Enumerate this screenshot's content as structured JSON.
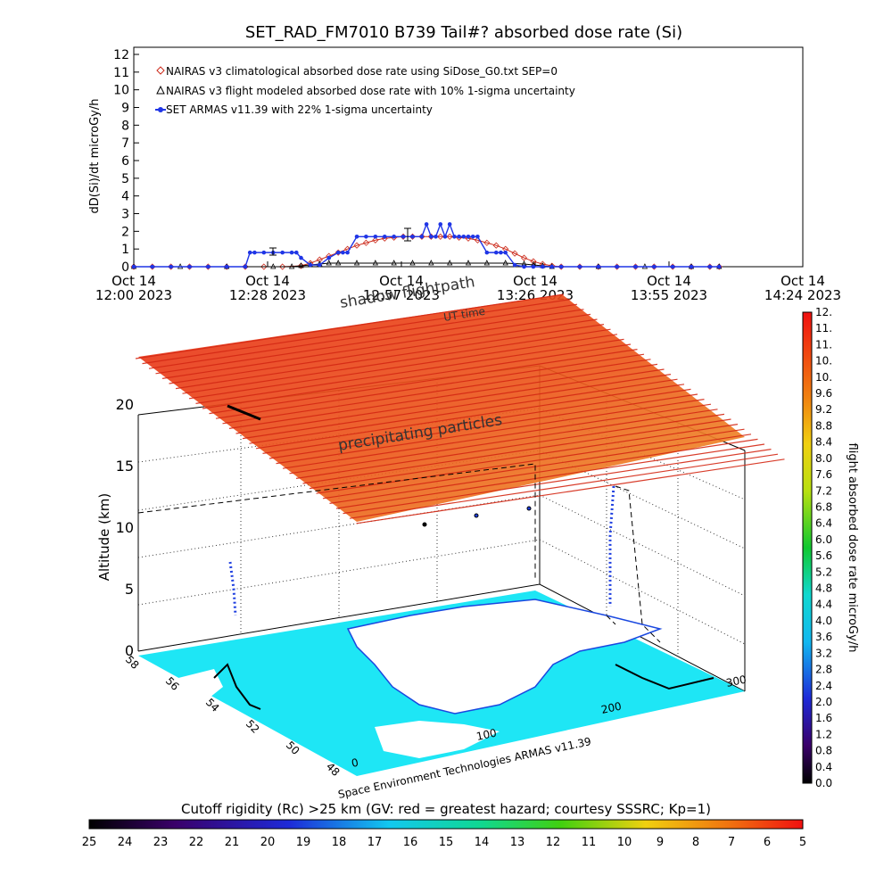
{
  "chart_data": [
    {
      "type": "line",
      "title": "SET_RAD_FM7010  B739 Tail#? absorbed dose rate (Si)",
      "ylabel": "dD(Si)/dt microGy/h",
      "xlabel": "",
      "ylim": [
        0,
        12
      ],
      "yticks": [
        "0",
        "1",
        "2",
        "3",
        "4",
        "5",
        "6",
        "7",
        "8",
        "9",
        "10",
        "11",
        "12"
      ],
      "xticks": [
        {
          "line1": "Oct 14",
          "line2": "12:00 2023"
        },
        {
          "line1": "Oct 14",
          "line2": "12:28 2023"
        },
        {
          "line1": "Oct 14",
          "line2": "12:57 2023"
        },
        {
          "line1": "Oct 14",
          "line2": "13:26 2023"
        },
        {
          "line1": "Oct 14",
          "line2": "13:55 2023"
        },
        {
          "line1": "Oct 14",
          "line2": "14:24 2023"
        }
      ],
      "xlim_minutes": [
        0,
        144
      ],
      "legend_placement": "top-left",
      "series": [
        {
          "name": "NAIRAS v3 climatological absorbed dose rate using SiDose_G0.txt SEP=0",
          "marker": "diamond",
          "color": "#cc2a1a",
          "x_minutes": [
            0,
            4,
            8,
            12,
            16,
            20,
            24,
            28,
            32,
            36,
            38,
            40,
            42,
            44,
            46,
            48,
            50,
            52,
            54,
            56,
            58,
            60,
            62,
            64,
            66,
            68,
            70,
            72,
            74,
            76,
            78,
            80,
            82,
            84,
            86,
            88,
            90,
            92,
            96,
            100,
            104,
            108,
            112,
            116,
            120,
            124,
            126
          ],
          "values": [
            0,
            0,
            0,
            0,
            0,
            0,
            0,
            0,
            0,
            0.05,
            0.2,
            0.4,
            0.6,
            0.8,
            1.0,
            1.2,
            1.35,
            1.5,
            1.6,
            1.65,
            1.7,
            1.7,
            1.7,
            1.7,
            1.7,
            1.7,
            1.65,
            1.6,
            1.5,
            1.35,
            1.2,
            1.0,
            0.75,
            0.5,
            0.3,
            0.15,
            0.05,
            0,
            0,
            0,
            0,
            0,
            0,
            0,
            0,
            0,
            0
          ]
        },
        {
          "name": "NAIRAS v3 flight modeled absorbed dose rate with 10% 1-sigma uncertainty",
          "marker": "triangle",
          "color": "#000000",
          "x_minutes": [
            0,
            10,
            20,
            30,
            34,
            36,
            38,
            40,
            42,
            44,
            48,
            52,
            56,
            60,
            64,
            68,
            72,
            76,
            80,
            84,
            86,
            88,
            90,
            100,
            110,
            120,
            126
          ],
          "values": [
            0,
            0,
            0,
            0,
            0,
            0.05,
            0.1,
            0.15,
            0.2,
            0.2,
            0.2,
            0.2,
            0.2,
            0.2,
            0.2,
            0.2,
            0.2,
            0.2,
            0.2,
            0.15,
            0.1,
            0.05,
            0,
            0,
            0,
            0,
            0
          ]
        },
        {
          "name": "SET ARMAS v11.39 with 22% 1-sigma uncertainty",
          "marker": "dot",
          "color": "#1f35e6",
          "x_minutes": [
            0,
            4,
            8,
            12,
            16,
            20,
            24,
            25,
            26,
            28,
            30,
            32,
            34,
            35,
            36,
            38,
            40,
            42,
            44,
            45,
            46,
            48,
            50,
            52,
            54,
            56,
            58,
            60,
            62,
            63,
            64,
            65,
            66,
            67,
            68,
            69,
            70,
            71,
            72,
            73,
            74,
            76,
            78,
            79,
            80,
            82,
            84,
            86,
            88,
            90,
            92,
            96,
            100,
            104,
            108,
            112,
            116,
            120,
            124,
            126
          ],
          "values": [
            0,
            0,
            0,
            0,
            0,
            0,
            0,
            0.8,
            0.8,
            0.8,
            0.8,
            0.8,
            0.8,
            0.8,
            0.5,
            0.1,
            0.1,
            0.5,
            0.8,
            0.8,
            0.8,
            1.7,
            1.7,
            1.7,
            1.7,
            1.7,
            1.7,
            1.7,
            1.7,
            2.4,
            1.7,
            1.7,
            2.4,
            1.7,
            2.4,
            1.7,
            1.7,
            1.7,
            1.7,
            1.7,
            1.7,
            0.8,
            0.8,
            0.8,
            0.8,
            0.1,
            0,
            0,
            0,
            0,
            0,
            0,
            0,
            0,
            0,
            0,
            0,
            0,
            0,
            0
          ]
        }
      ]
    },
    {
      "type": "heatmap",
      "z_label": "Altitude (km)",
      "z_ticks": [
        "0",
        "5",
        "10",
        "15",
        "20"
      ],
      "lat_ticks": [
        "48",
        "50",
        "52",
        "54",
        "56",
        "58"
      ],
      "lon_ticks": [
        "0",
        "100",
        "200",
        "300"
      ],
      "annotations": [
        "precipitating particles",
        "shadow flightpath",
        "UT time",
        "Space Environment Technologies ARMAS v11.39"
      ],
      "colorbar": {
        "label": "flight absorbed dose rate microGy/h",
        "ticks": [
          "0.0",
          "0.4",
          "0.8",
          "1.2",
          "1.6",
          "2.0",
          "2.4",
          "2.8",
          "3.2",
          "3.6",
          "4.0",
          "4.4",
          "4.8",
          "5.2",
          "5.6",
          "6.0",
          "6.4",
          "6.8",
          "7.2",
          "7.6",
          "8.0",
          "8.4",
          "8.8",
          "9.2",
          "9.6",
          "10.",
          "10.",
          "11.",
          "11.",
          "12."
        ]
      },
      "rigidity_bar": {
        "label": "Cutoff rigidity (Rc) >25 km (GV: red = greatest hazard; courtesy SSSRC; Kp=1)",
        "ticks": [
          "25",
          "24",
          "23",
          "22",
          "21",
          "20",
          "19",
          "18",
          "17",
          "16",
          "15",
          "14",
          "13",
          "12",
          "11",
          "10",
          "9",
          "8",
          "7",
          "6",
          "5"
        ]
      }
    }
  ],
  "colors": {
    "nairas_clim": "#cc2a1a",
    "nairas_flight": "#000000",
    "armas": "#1f35e6",
    "sea": "#1ee6f5",
    "land": "#ffffff"
  }
}
